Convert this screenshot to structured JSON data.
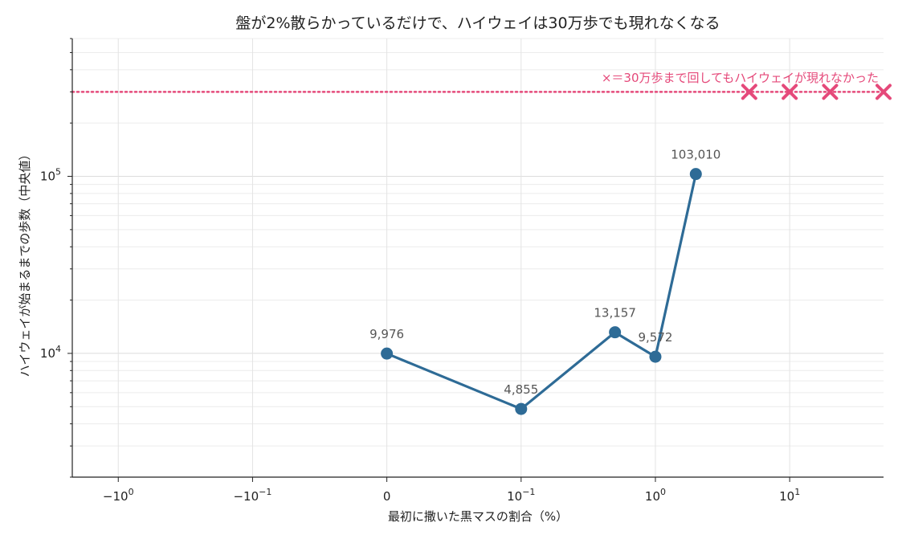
{
  "chart_data": {
    "type": "line",
    "title": "盤が2%散らかっているだけで、ハイウェイは30万歩でも現れなくなる",
    "xlabel": "最初に撒いた黒マスの割合（%）",
    "ylabel": "ハイウェイが始まるまでの歩数（中央値）",
    "x_scale": "symlog",
    "x_linthresh": 0.1,
    "xlim": [
      -2.2,
      50
    ],
    "x_ticks": [
      {
        "value": -1,
        "label": "−10",
        "exp": "0"
      },
      {
        "value": -0.1,
        "label": "−10",
        "exp": "−1"
      },
      {
        "value": 0,
        "label": "0",
        "exp": ""
      },
      {
        "value": 0.1,
        "label": "10",
        "exp": "−1"
      },
      {
        "value": 1,
        "label": "10",
        "exp": "0"
      },
      {
        "value": 10,
        "label": "10",
        "exp": "1"
      }
    ],
    "y_scale": "log",
    "ylim": [
      2000,
      600000
    ],
    "y_ticks": [
      {
        "value": 10000,
        "label": "10",
        "exp": "4"
      },
      {
        "value": 100000,
        "label": "10",
        "exp": "5"
      }
    ],
    "grid": true,
    "series": [
      {
        "color": "#2e6b96",
        "x": [
          0,
          0.1,
          0.5,
          1,
          2
        ],
        "y": [
          9976,
          4855,
          13157,
          9572,
          103010
        ],
        "labels": [
          "9,976",
          "4,855",
          "13,157",
          "9,572",
          "103,010"
        ]
      }
    ],
    "failed_points": {
      "color": "#e5497a",
      "x": [
        5,
        10,
        20,
        50
      ],
      "y": [
        300000,
        300000,
        300000,
        300000
      ]
    },
    "reference_line": {
      "y": 300000,
      "color": "#e5497a",
      "style": "dotted",
      "label": "×＝30万歩まで回してもハイウェイが現れなかった"
    }
  }
}
